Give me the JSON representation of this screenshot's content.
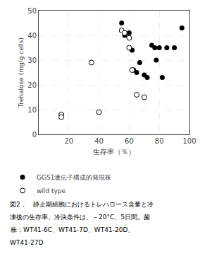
{
  "chart_data": {
    "type": "scatter",
    "xlabel": "生存率（％）",
    "ylabel": "Trehalose (mg/g cells)",
    "series": [
      {
        "name": "GGS1遺伝子構成的発現株",
        "color": "black",
        "marker": "circle",
        "x": [
          55,
          57,
          60,
          62,
          63,
          65,
          67,
          70,
          72,
          75,
          77,
          78,
          80,
          82,
          85,
          90,
          95
        ],
        "values": [
          45,
          40,
          41,
          34,
          26,
          25,
          29,
          24,
          23,
          36,
          35,
          30,
          35,
          23,
          35,
          35,
          43
        ]
      },
      {
        "name": "wild type",
        "color": "black",
        "marker": "circle-open",
        "x": [
          15,
          15,
          35,
          40,
          55,
          57,
          60,
          62,
          65,
          70,
          60
        ],
        "values": [
          8,
          7,
          29,
          9,
          42,
          41,
          39,
          26,
          16,
          15,
          35
        ]
      }
    ],
    "annotations": [
      "図2．　静止期細胞におけるトレハロース含量と冷",
      "凍後の生存率、冷決条件は、－20°C、5日間。菌",
      "株；WT41-6C、WT41-7D、WT41-20D、",
      "WT41-27D"
    ],
    "xlim": [
      0,
      100
    ],
    "ylim": [
      0,
      50
    ],
    "xticks": [
      20,
      40,
      60,
      80,
      100
    ],
    "yticks": [
      0,
      10,
      20,
      30,
      40,
      50
    ],
    "grid": true,
    "legend": "bottom"
  }
}
